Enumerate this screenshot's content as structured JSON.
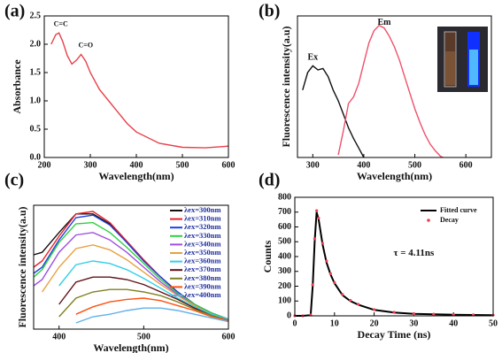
{
  "chart_data": [
    {
      "type": "line",
      "label": "(a)",
      "xlabel": "Wavelength(nm)",
      "ylabel": "Absorbance",
      "xlim": [
        200,
        600
      ],
      "xticks": [
        200,
        300,
        400,
        500,
        600
      ],
      "ylim": [
        0,
        2.5
      ],
      "yticks": [
        {
          "value": 0,
          "label": "0.0"
        },
        0.5,
        {
          "value": 1,
          "label": "1.0"
        },
        1.5,
        {
          "value": 2,
          "label": "2.0"
        },
        2.5
      ],
      "annotations": [
        "C=C",
        "C=O"
      ],
      "x": [
        215,
        225,
        232,
        240,
        250,
        260,
        270,
        280,
        290,
        300,
        320,
        350,
        380,
        400,
        450,
        500,
        550,
        600
      ],
      "series": [
        {
          "name": "Absorbance",
          "color": "#e8404a",
          "values": [
            2.0,
            2.17,
            2.2,
            2.05,
            1.8,
            1.65,
            1.72,
            1.82,
            1.7,
            1.5,
            1.2,
            0.9,
            0.6,
            0.45,
            0.25,
            0.18,
            0.17,
            0.2
          ]
        }
      ],
      "legend": false
    },
    {
      "type": "line",
      "label": "(b)",
      "xlabel": "Wavelength(nm)",
      "ylabel": "Fluorescence intensity(a.u)",
      "xlim": [
        270,
        650
      ],
      "xticks": [
        300,
        400,
        500,
        600
      ],
      "ylim": [
        0,
        1.05
      ],
      "x": [
        280,
        290,
        300,
        310,
        320,
        330,
        340,
        350,
        360,
        370,
        380,
        390,
        400,
        410,
        420,
        430,
        440,
        450,
        460,
        470,
        480,
        490,
        500,
        510,
        520,
        530,
        540,
        550,
        555
      ],
      "series": [
        {
          "name": "Ex",
          "color": "#111111",
          "values": [
            0.5,
            0.63,
            0.68,
            0.65,
            0.66,
            0.6,
            0.5,
            0.42,
            0.32,
            0.22,
            0.14,
            0.07,
            0.0,
            null,
            null,
            null,
            null,
            null,
            null,
            null,
            null,
            null,
            null,
            null,
            null,
            null,
            null,
            null,
            null
          ]
        },
        {
          "name": "Em",
          "color": "#f0506a",
          "values": [
            null,
            null,
            null,
            null,
            null,
            null,
            null,
            0.02,
            0.2,
            0.4,
            0.45,
            0.55,
            0.7,
            0.85,
            0.94,
            0.98,
            0.96,
            0.9,
            0.82,
            0.72,
            0.6,
            0.48,
            0.36,
            0.26,
            0.17,
            0.1,
            0.05,
            0.01,
            0.0
          ]
        }
      ],
      "legend": false
    },
    {
      "type": "line",
      "label": "(c)",
      "xlabel": "Wavelength(nm)",
      "ylabel": "Fluorescence intensity(a.u)",
      "xlim": [
        370,
        600
      ],
      "xticks": [
        400,
        500,
        600
      ],
      "ylim": [
        0,
        1.0
      ],
      "x": [
        370,
        380,
        400,
        420,
        440,
        460,
        480,
        500,
        520,
        540,
        560,
        580,
        600
      ],
      "series": [
        {
          "name": "λex=300nm",
          "color": "#111111",
          "values": [
            0.6,
            0.62,
            0.78,
            0.93,
            0.93,
            0.85,
            0.7,
            0.55,
            0.42,
            0.3,
            0.2,
            0.13,
            0.08
          ]
        },
        {
          "name": "λex=310nm",
          "color": "#e8202a",
          "values": [
            0.5,
            0.55,
            0.75,
            0.93,
            0.95,
            0.86,
            0.71,
            0.56,
            0.42,
            0.3,
            0.2,
            0.13,
            0.08
          ]
        },
        {
          "name": "λex=320nm",
          "color": "#2040e0",
          "values": [
            0.45,
            0.5,
            0.72,
            0.9,
            0.92,
            0.84,
            0.7,
            0.55,
            0.42,
            0.3,
            0.2,
            0.13,
            0.08
          ]
        },
        {
          "name": "λex=330nm",
          "color": "#30d040",
          "values": [
            0.42,
            0.48,
            0.7,
            0.85,
            0.86,
            0.78,
            0.66,
            0.53,
            0.4,
            0.29,
            0.2,
            0.13,
            0.08
          ]
        },
        {
          "name": "λex=340nm",
          "color": "#a050e0",
          "values": [
            0.35,
            0.4,
            0.62,
            0.76,
            0.78,
            0.72,
            0.62,
            0.5,
            0.38,
            0.28,
            0.19,
            0.12,
            0.08
          ]
        },
        {
          "name": "λex=350nm",
          "color": "#e8a040",
          "values": [
            null,
            0.3,
            0.5,
            0.65,
            0.68,
            0.64,
            0.56,
            0.46,
            0.36,
            0.27,
            0.19,
            0.12,
            0.08
          ]
        },
        {
          "name": "λex=360nm",
          "color": "#30d0e8",
          "values": [
            null,
            null,
            0.35,
            0.52,
            0.55,
            0.53,
            0.48,
            0.41,
            0.33,
            0.25,
            0.18,
            0.12,
            0.08
          ]
        },
        {
          "name": "λex=370nm",
          "color": "#601018",
          "values": [
            null,
            null,
            0.2,
            0.38,
            0.42,
            0.42,
            0.4,
            0.36,
            0.3,
            0.24,
            0.17,
            0.11,
            0.07
          ]
        },
        {
          "name": "λex=380nm",
          "color": "#808020",
          "values": [
            null,
            null,
            0.1,
            0.25,
            0.3,
            0.32,
            0.32,
            0.3,
            0.27,
            0.22,
            0.16,
            0.11,
            0.07
          ]
        },
        {
          "name": "λex=390nm",
          "color": "#ff5010",
          "values": [
            null,
            null,
            null,
            0.12,
            0.18,
            0.22,
            0.24,
            0.25,
            0.23,
            0.19,
            0.15,
            0.1,
            0.07
          ]
        },
        {
          "name": "λex=400nm",
          "color": "#60b0e8",
          "values": [
            null,
            null,
            null,
            0.05,
            0.1,
            0.12,
            0.15,
            0.17,
            0.17,
            0.15,
            0.12,
            0.09,
            0.06
          ]
        }
      ],
      "legend": "upper right"
    },
    {
      "type": "line",
      "label": "(d)",
      "xlabel": "Decay Time (ns)",
      "ylabel": "Counts",
      "xlim": [
        0,
        50
      ],
      "xticks": [
        0,
        10,
        20,
        30,
        40,
        50
      ],
      "ylim": [
        0,
        800
      ],
      "yticks": [
        0,
        100,
        200,
        300,
        400,
        500,
        600,
        700,
        800
      ],
      "annotations": [
        "τ = 4.11ns"
      ],
      "x": [
        0,
        2,
        4,
        4.5,
        5,
        5.5,
        6,
        7,
        8,
        9,
        10,
        12,
        14,
        16,
        20,
        25,
        30,
        35,
        40,
        45,
        50
      ],
      "series": [
        {
          "name": "Fitted curve",
          "color": "#000000",
          "mode": "line",
          "values": [
            0,
            0,
            5,
            200,
            500,
            700,
            650,
            480,
            360,
            280,
            220,
            140,
            100,
            75,
            40,
            22,
            14,
            10,
            8,
            6,
            5
          ]
        },
        {
          "name": "Decay",
          "color": "#f04050",
          "mode": "markers",
          "values": [
            0,
            0,
            6,
            210,
            520,
            710,
            660,
            490,
            370,
            285,
            225,
            145,
            105,
            78,
            42,
            24,
            15,
            11,
            8,
            7,
            5
          ]
        }
      ],
      "legend": "upper right"
    }
  ]
}
